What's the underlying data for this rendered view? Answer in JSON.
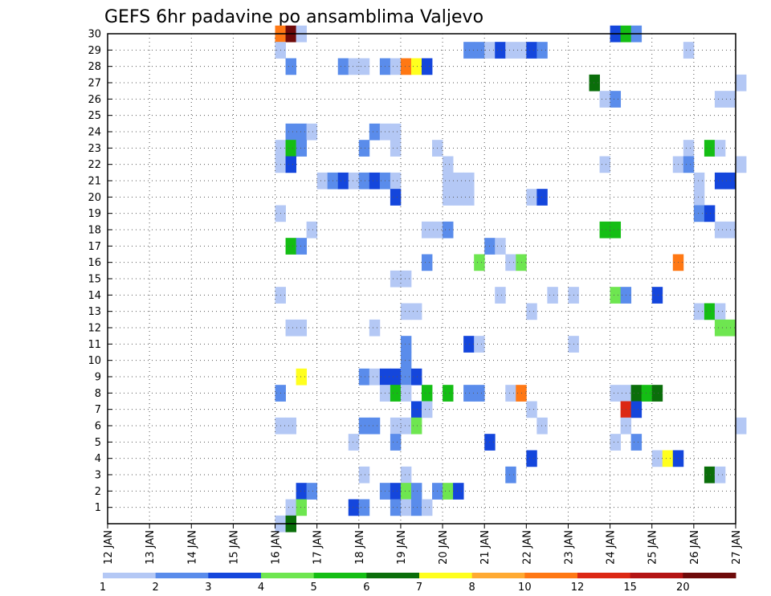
{
  "chart_data": {
    "type": "heatmap",
    "title": "GEFS 6hr padavine po ansamblima Valjevo",
    "x_ticks": [
      "12 JAN",
      "13 JAN",
      "14 JAN",
      "15 JAN",
      "16 JAN",
      "17 JAN",
      "18 JAN",
      "19 JAN",
      "20 JAN",
      "21 JAN",
      "22 JAN",
      "23 JAN",
      "24 JAN",
      "25 JAN",
      "26 JAN",
      "27 JAN"
    ],
    "y_ticks": [
      "1",
      "2",
      "3",
      "4",
      "5",
      "6",
      "7",
      "8",
      "9",
      "10",
      "11",
      "12",
      "13",
      "14",
      "15",
      "16",
      "17",
      "18",
      "19",
      "20",
      "21",
      "22",
      "23",
      "24",
      "25",
      "26",
      "27",
      "28",
      "29",
      "30"
    ],
    "x_range": [
      "12 JAN 00Z",
      "27 JAN 00Z"
    ],
    "y_range": [
      0,
      30
    ],
    "grid": true,
    "time_step_hours": 6,
    "color_levels": [
      "1",
      "2",
      "3",
      "4",
      "5",
      "6",
      "7",
      "8",
      "10",
      "12",
      "15",
      "20"
    ],
    "colors": [
      "#b4c8f5",
      "#5a8ceb",
      "#1446dc",
      "#6ee650",
      "#14be14",
      "#0a6e0a",
      "#ffff1e",
      "#ffaa32",
      "#ff7814",
      "#dc2814",
      "#b41414",
      "#6e0a0a"
    ],
    "cells": [
      {
        "x": "16 JAN 00Z",
        "y": 30,
        "v": 10
      },
      {
        "x": "16 JAN 06Z",
        "y": 30,
        "v": 20
      },
      {
        "x": "16 JAN 12Z",
        "y": 30,
        "v": 1
      },
      {
        "x": "24 JAN 00Z",
        "y": 30,
        "v": 3
      },
      {
        "x": "24 JAN 06Z",
        "y": 30,
        "v": 5
      },
      {
        "x": "24 JAN 12Z",
        "y": 30,
        "v": 2
      },
      {
        "x": "16 JAN 00Z",
        "y": 29,
        "v": 1
      },
      {
        "x": "20 JAN 12Z",
        "y": 29,
        "v": 2
      },
      {
        "x": "20 JAN 18Z",
        "y": 29,
        "v": 2
      },
      {
        "x": "21 JAN 00Z",
        "y": 29,
        "v": 1
      },
      {
        "x": "21 JAN 06Z",
        "y": 29,
        "v": 3
      },
      {
        "x": "21 JAN 12Z",
        "y": 29,
        "v": 1
      },
      {
        "x": "21 JAN 18Z",
        "y": 29,
        "v": 1
      },
      {
        "x": "22 JAN 00Z",
        "y": 29,
        "v": 3
      },
      {
        "x": "22 JAN 06Z",
        "y": 29,
        "v": 2
      },
      {
        "x": "25 JAN 18Z",
        "y": 29,
        "v": 1
      },
      {
        "x": "16 JAN 06Z",
        "y": 28,
        "v": 2
      },
      {
        "x": "17 JAN 12Z",
        "y": 28,
        "v": 2
      },
      {
        "x": "17 JAN 18Z",
        "y": 28,
        "v": 1
      },
      {
        "x": "18 JAN 00Z",
        "y": 28,
        "v": 1
      },
      {
        "x": "18 JAN 12Z",
        "y": 28,
        "v": 2
      },
      {
        "x": "18 JAN 18Z",
        "y": 28,
        "v": 1
      },
      {
        "x": "19 JAN 00Z",
        "y": 28,
        "v": 10
      },
      {
        "x": "19 JAN 06Z",
        "y": 28,
        "v": 7
      },
      {
        "x": "19 JAN 12Z",
        "y": 28,
        "v": 3
      },
      {
        "x": "23 JAN 12Z",
        "y": 27,
        "v": 6
      },
      {
        "x": "27 JAN 00Z",
        "y": 27,
        "v": 1
      },
      {
        "x": "23 JAN 18Z",
        "y": 26,
        "v": 1
      },
      {
        "x": "24 JAN 00Z",
        "y": 26,
        "v": 2
      },
      {
        "x": "26 JAN 12Z",
        "y": 26,
        "v": 1
      },
      {
        "x": "26 JAN 18Z",
        "y": 26,
        "v": 1
      },
      {
        "x": "16 JAN 06Z",
        "y": 24,
        "v": 2
      },
      {
        "x": "16 JAN 12Z",
        "y": 24,
        "v": 2
      },
      {
        "x": "16 JAN 18Z",
        "y": 24,
        "v": 1
      },
      {
        "x": "18 JAN 06Z",
        "y": 24,
        "v": 2
      },
      {
        "x": "18 JAN 12Z",
        "y": 24,
        "v": 1
      },
      {
        "x": "18 JAN 18Z",
        "y": 24,
        "v": 1
      },
      {
        "x": "16 JAN 00Z",
        "y": 23,
        "v": 1
      },
      {
        "x": "16 JAN 06Z",
        "y": 23,
        "v": 5
      },
      {
        "x": "16 JAN 12Z",
        "y": 23,
        "v": 2
      },
      {
        "x": "18 JAN 00Z",
        "y": 23,
        "v": 2
      },
      {
        "x": "18 JAN 18Z",
        "y": 23,
        "v": 1
      },
      {
        "x": "19 JAN 18Z",
        "y": 23,
        "v": 1
      },
      {
        "x": "25 JAN 18Z",
        "y": 23,
        "v": 1
      },
      {
        "x": "26 JAN 06Z",
        "y": 23,
        "v": 5
      },
      {
        "x": "26 JAN 12Z",
        "y": 23,
        "v": 1
      },
      {
        "x": "16 JAN 00Z",
        "y": 22,
        "v": 1
      },
      {
        "x": "16 JAN 06Z",
        "y": 22,
        "v": 3
      },
      {
        "x": "20 JAN 00Z",
        "y": 22,
        "v": 1
      },
      {
        "x": "23 JAN 18Z",
        "y": 22,
        "v": 1
      },
      {
        "x": "25 JAN 12Z",
        "y": 22,
        "v": 1
      },
      {
        "x": "25 JAN 18Z",
        "y": 22,
        "v": 2
      },
      {
        "x": "27 JAN 00Z",
        "y": 22,
        "v": 1
      },
      {
        "x": "17 JAN 00Z",
        "y": 21,
        "v": 1
      },
      {
        "x": "17 JAN 06Z",
        "y": 21,
        "v": 2
      },
      {
        "x": "17 JAN 12Z",
        "y": 21,
        "v": 3
      },
      {
        "x": "17 JAN 18Z",
        "y": 21,
        "v": 1
      },
      {
        "x": "18 JAN 00Z",
        "y": 21,
        "v": 2
      },
      {
        "x": "18 JAN 06Z",
        "y": 21,
        "v": 3
      },
      {
        "x": "18 JAN 12Z",
        "y": 21,
        "v": 2
      },
      {
        "x": "18 JAN 18Z",
        "y": 21,
        "v": 1
      },
      {
        "x": "20 JAN 00Z",
        "y": 21,
        "v": 1
      },
      {
        "x": "20 JAN 06Z",
        "y": 21,
        "v": 1
      },
      {
        "x": "20 JAN 12Z",
        "y": 21,
        "v": 1
      },
      {
        "x": "26 JAN 00Z",
        "y": 21,
        "v": 1
      },
      {
        "x": "26 JAN 12Z",
        "y": 21,
        "v": 3
      },
      {
        "x": "26 JAN 18Z",
        "y": 21,
        "v": 3
      },
      {
        "x": "18 JAN 18Z",
        "y": 20,
        "v": 3
      },
      {
        "x": "20 JAN 00Z",
        "y": 20,
        "v": 1
      },
      {
        "x": "20 JAN 06Z",
        "y": 20,
        "v": 1
      },
      {
        "x": "20 JAN 12Z",
        "y": 20,
        "v": 1
      },
      {
        "x": "22 JAN 00Z",
        "y": 20,
        "v": 1
      },
      {
        "x": "22 JAN 06Z",
        "y": 20,
        "v": 3
      },
      {
        "x": "26 JAN 00Z",
        "y": 20,
        "v": 1
      },
      {
        "x": "16 JAN 00Z",
        "y": 19,
        "v": 1
      },
      {
        "x": "26 JAN 00Z",
        "y": 19,
        "v": 2
      },
      {
        "x": "26 JAN 06Z",
        "y": 19,
        "v": 3
      },
      {
        "x": "16 JAN 18Z",
        "y": 18,
        "v": 1
      },
      {
        "x": "19 JAN 12Z",
        "y": 18,
        "v": 1
      },
      {
        "x": "19 JAN 18Z",
        "y": 18,
        "v": 1
      },
      {
        "x": "20 JAN 00Z",
        "y": 18,
        "v": 2
      },
      {
        "x": "23 JAN 18Z",
        "y": 18,
        "v": 5
      },
      {
        "x": "24 JAN 00Z",
        "y": 18,
        "v": 5
      },
      {
        "x": "26 JAN 12Z",
        "y": 18,
        "v": 1
      },
      {
        "x": "26 JAN 18Z",
        "y": 18,
        "v": 1
      },
      {
        "x": "16 JAN 06Z",
        "y": 17,
        "v": 5
      },
      {
        "x": "16 JAN 12Z",
        "y": 17,
        "v": 2
      },
      {
        "x": "21 JAN 00Z",
        "y": 17,
        "v": 2
      },
      {
        "x": "21 JAN 06Z",
        "y": 17,
        "v": 1
      },
      {
        "x": "19 JAN 12Z",
        "y": 16,
        "v": 2
      },
      {
        "x": "20 JAN 18Z",
        "y": 16,
        "v": 4
      },
      {
        "x": "21 JAN 12Z",
        "y": 16,
        "v": 1
      },
      {
        "x": "21 JAN 18Z",
        "y": 16,
        "v": 4
      },
      {
        "x": "25 JAN 12Z",
        "y": 16,
        "v": 10
      },
      {
        "x": "18 JAN 18Z",
        "y": 15,
        "v": 1
      },
      {
        "x": "19 JAN 00Z",
        "y": 15,
        "v": 1
      },
      {
        "x": "16 JAN 00Z",
        "y": 14,
        "v": 1
      },
      {
        "x": "21 JAN 06Z",
        "y": 14,
        "v": 1
      },
      {
        "x": "22 JAN 12Z",
        "y": 14,
        "v": 1
      },
      {
        "x": "23 JAN 00Z",
        "y": 14,
        "v": 1
      },
      {
        "x": "24 JAN 00Z",
        "y": 14,
        "v": 4
      },
      {
        "x": "24 JAN 06Z",
        "y": 14,
        "v": 2
      },
      {
        "x": "25 JAN 00Z",
        "y": 14,
        "v": 3
      },
      {
        "x": "19 JAN 00Z",
        "y": 13,
        "v": 1
      },
      {
        "x": "19 JAN 06Z",
        "y": 13,
        "v": 1
      },
      {
        "x": "22 JAN 00Z",
        "y": 13,
        "v": 1
      },
      {
        "x": "26 JAN 00Z",
        "y": 13,
        "v": 1
      },
      {
        "x": "26 JAN 06Z",
        "y": 13,
        "v": 5
      },
      {
        "x": "26 JAN 12Z",
        "y": 13,
        "v": 1
      },
      {
        "x": "16 JAN 06Z",
        "y": 12,
        "v": 1
      },
      {
        "x": "16 JAN 12Z",
        "y": 12,
        "v": 1
      },
      {
        "x": "18 JAN 06Z",
        "y": 12,
        "v": 1
      },
      {
        "x": "26 JAN 12Z",
        "y": 12,
        "v": 4
      },
      {
        "x": "26 JAN 18Z",
        "y": 12,
        "v": 4
      },
      {
        "x": "19 JAN 00Z",
        "y": 11,
        "v": 2
      },
      {
        "x": "20 JAN 12Z",
        "y": 11,
        "v": 3
      },
      {
        "x": "20 JAN 18Z",
        "y": 11,
        "v": 1
      },
      {
        "x": "23 JAN 00Z",
        "y": 11,
        "v": 1
      },
      {
        "x": "19 JAN 00Z",
        "y": 10,
        "v": 2
      },
      {
        "x": "16 JAN 12Z",
        "y": 9,
        "v": 7
      },
      {
        "x": "18 JAN 00Z",
        "y": 9,
        "v": 2
      },
      {
        "x": "18 JAN 06Z",
        "y": 9,
        "v": 1
      },
      {
        "x": "18 JAN 12Z",
        "y": 9,
        "v": 3
      },
      {
        "x": "18 JAN 18Z",
        "y": 9,
        "v": 3
      },
      {
        "x": "19 JAN 00Z",
        "y": 9,
        "v": 2
      },
      {
        "x": "19 JAN 06Z",
        "y": 9,
        "v": 3
      },
      {
        "x": "16 JAN 00Z",
        "y": 8,
        "v": 2
      },
      {
        "x": "18 JAN 12Z",
        "y": 8,
        "v": 1
      },
      {
        "x": "18 JAN 18Z",
        "y": 8,
        "v": 5
      },
      {
        "x": "19 JAN 00Z",
        "y": 8,
        "v": 1
      },
      {
        "x": "19 JAN 12Z",
        "y": 8,
        "v": 5
      },
      {
        "x": "20 JAN 00Z",
        "y": 8,
        "v": 5
      },
      {
        "x": "20 JAN 12Z",
        "y": 8,
        "v": 2
      },
      {
        "x": "20 JAN 18Z",
        "y": 8,
        "v": 2
      },
      {
        "x": "21 JAN 12Z",
        "y": 8,
        "v": 1
      },
      {
        "x": "21 JAN 18Z",
        "y": 8,
        "v": 10
      },
      {
        "x": "24 JAN 00Z",
        "y": 8,
        "v": 1
      },
      {
        "x": "24 JAN 06Z",
        "y": 8,
        "v": 1
      },
      {
        "x": "24 JAN 12Z",
        "y": 8,
        "v": 6
      },
      {
        "x": "24 JAN 18Z",
        "y": 8,
        "v": 5
      },
      {
        "x": "25 JAN 00Z",
        "y": 8,
        "v": 6
      },
      {
        "x": "19 JAN 06Z",
        "y": 7,
        "v": 3
      },
      {
        "x": "19 JAN 12Z",
        "y": 7,
        "v": 1
      },
      {
        "x": "22 JAN 00Z",
        "y": 7,
        "v": 1
      },
      {
        "x": "24 JAN 06Z",
        "y": 7,
        "v": 12
      },
      {
        "x": "24 JAN 12Z",
        "y": 7,
        "v": 3
      },
      {
        "x": "16 JAN 00Z",
        "y": 6,
        "v": 1
      },
      {
        "x": "16 JAN 06Z",
        "y": 6,
        "v": 1
      },
      {
        "x": "18 JAN 00Z",
        "y": 6,
        "v": 2
      },
      {
        "x": "18 JAN 06Z",
        "y": 6,
        "v": 2
      },
      {
        "x": "18 JAN 18Z",
        "y": 6,
        "v": 1
      },
      {
        "x": "19 JAN 00Z",
        "y": 6,
        "v": 1
      },
      {
        "x": "19 JAN 06Z",
        "y": 6,
        "v": 4
      },
      {
        "x": "22 JAN 06Z",
        "y": 6,
        "v": 1
      },
      {
        "x": "24 JAN 06Z",
        "y": 6,
        "v": 1
      },
      {
        "x": "27 JAN 00Z",
        "y": 6,
        "v": 1
      },
      {
        "x": "17 JAN 18Z",
        "y": 5,
        "v": 1
      },
      {
        "x": "18 JAN 18Z",
        "y": 5,
        "v": 2
      },
      {
        "x": "21 JAN 00Z",
        "y": 5,
        "v": 3
      },
      {
        "x": "24 JAN 00Z",
        "y": 5,
        "v": 1
      },
      {
        "x": "24 JAN 12Z",
        "y": 5,
        "v": 2
      },
      {
        "x": "22 JAN 00Z",
        "y": 4,
        "v": 3
      },
      {
        "x": "25 JAN 00Z",
        "y": 4,
        "v": 1
      },
      {
        "x": "25 JAN 06Z",
        "y": 4,
        "v": 7
      },
      {
        "x": "25 JAN 12Z",
        "y": 4,
        "v": 3
      },
      {
        "x": "18 JAN 00Z",
        "y": 3,
        "v": 1
      },
      {
        "x": "19 JAN 00Z",
        "y": 3,
        "v": 1
      },
      {
        "x": "21 JAN 12Z",
        "y": 3,
        "v": 2
      },
      {
        "x": "26 JAN 06Z",
        "y": 3,
        "v": 6
      },
      {
        "x": "26 JAN 12Z",
        "y": 3,
        "v": 1
      },
      {
        "x": "16 JAN 12Z",
        "y": 2,
        "v": 3
      },
      {
        "x": "16 JAN 18Z",
        "y": 2,
        "v": 2
      },
      {
        "x": "18 JAN 12Z",
        "y": 2,
        "v": 2
      },
      {
        "x": "18 JAN 18Z",
        "y": 2,
        "v": 3
      },
      {
        "x": "19 JAN 00Z",
        "y": 2,
        "v": 4
      },
      {
        "x": "19 JAN 06Z",
        "y": 2,
        "v": 2
      },
      {
        "x": "19 JAN 18Z",
        "y": 2,
        "v": 2
      },
      {
        "x": "20 JAN 00Z",
        "y": 2,
        "v": 4
      },
      {
        "x": "20 JAN 06Z",
        "y": 2,
        "v": 3
      },
      {
        "x": "16 JAN 06Z",
        "y": 1,
        "v": 1
      },
      {
        "x": "16 JAN 12Z",
        "y": 1,
        "v": 4
      },
      {
        "x": "17 JAN 18Z",
        "y": 1,
        "v": 3
      },
      {
        "x": "18 JAN 00Z",
        "y": 1,
        "v": 2
      },
      {
        "x": "18 JAN 18Z",
        "y": 1,
        "v": 2
      },
      {
        "x": "19 JAN 00Z",
        "y": 1,
        "v": 1
      },
      {
        "x": "19 JAN 06Z",
        "y": 1,
        "v": 2
      },
      {
        "x": "19 JAN 12Z",
        "y": 1,
        "v": 1
      },
      {
        "x": "16 JAN 00Z",
        "y": 0,
        "v": 1
      },
      {
        "x": "16 JAN 06Z",
        "y": 0,
        "v": 6
      }
    ]
  }
}
